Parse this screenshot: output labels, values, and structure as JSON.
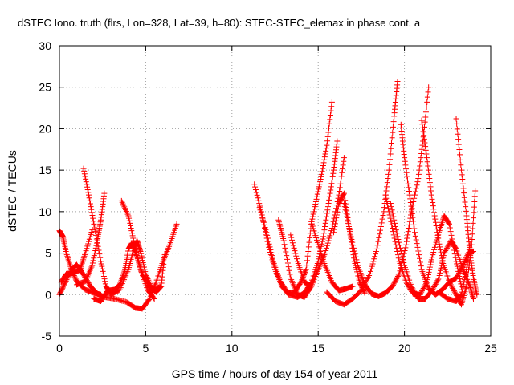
{
  "chart_data": {
    "type": "scatter",
    "title": "dSTEC Iono. truth (flrs, Lon=328, Lat=39, h=80): STEC-STEC_elemax in phase cont. a",
    "xlabel": "GPS time / hours of day 154 of year 2011",
    "ylabel": "dSTEC  / TECUs",
    "xlim": [
      0,
      25
    ],
    "ylim": [
      -5,
      30
    ],
    "xticks": [
      "0",
      "5",
      "10",
      "15",
      "20",
      "25"
    ],
    "yticks": [
      "-5",
      "0",
      "5",
      "10",
      "15",
      "20",
      "25",
      "30"
    ],
    "grid": true,
    "marker": "+",
    "color": "#ff0000",
    "arcs": [
      [
        [
          0.0,
          7.7
        ],
        [
          0.2,
          7.0
        ],
        [
          0.4,
          5.0
        ],
        [
          0.7,
          3.0
        ],
        [
          1.0,
          1.6
        ],
        [
          1.5,
          0.6
        ],
        [
          2.0,
          0.2
        ],
        [
          2.4,
          0.0
        ]
      ],
      [
        [
          0.0,
          0.0
        ],
        [
          0.3,
          1.3
        ],
        [
          0.7,
          3.0
        ],
        [
          1.0,
          3.6
        ],
        [
          1.4,
          2.4
        ],
        [
          1.8,
          1.0
        ],
        [
          2.2,
          0.1
        ],
        [
          2.6,
          -0.3
        ],
        [
          3.2,
          -0.5
        ],
        [
          3.9,
          -0.9
        ],
        [
          4.4,
          -1.6
        ],
        [
          4.8,
          -1.7
        ],
        [
          5.2,
          -0.6
        ],
        [
          5.6,
          1.5
        ],
        [
          6.0,
          4.0
        ],
        [
          6.4,
          6.0
        ],
        [
          6.8,
          8.5
        ]
      ],
      [
        [
          0.1,
          1.5
        ],
        [
          0.4,
          2.5
        ],
        [
          0.8,
          2.6
        ],
        [
          1.2,
          3.0
        ],
        [
          1.5,
          5.0
        ],
        [
          1.9,
          7.8
        ]
      ],
      [
        [
          1.4,
          15.2
        ],
        [
          1.7,
          12.0
        ],
        [
          2.0,
          8.5
        ],
        [
          2.4,
          4.0
        ],
        [
          2.7,
          1.0
        ],
        [
          3.0,
          0.0
        ],
        [
          3.5,
          0.6
        ],
        [
          4.0,
          3.0
        ],
        [
          4.3,
          5.5
        ],
        [
          4.5,
          6.5
        ],
        [
          4.7,
          5.2
        ],
        [
          5.0,
          2.5
        ],
        [
          5.4,
          0.6
        ],
        [
          5.9,
          1.0
        ],
        [
          6.1,
          4.8
        ]
      ],
      [
        [
          1.0,
          1.2
        ],
        [
          1.5,
          1.6
        ],
        [
          1.9,
          3.5
        ],
        [
          2.2,
          6.5
        ],
        [
          2.4,
          9.0
        ],
        [
          2.6,
          12.2
        ]
      ],
      [
        [
          2.0,
          -0.5
        ],
        [
          2.4,
          -0.8
        ],
        [
          2.8,
          0.5
        ],
        [
          3.2,
          0.6
        ],
        [
          3.5,
          1.2
        ],
        [
          3.8,
          3.0
        ],
        [
          4.0,
          5.5
        ],
        [
          4.2,
          6.2
        ],
        [
          4.5,
          4.5
        ],
        [
          4.8,
          2.5
        ],
        [
          5.2,
          1.0
        ],
        [
          5.6,
          0.3
        ],
        [
          5.9,
          1.0
        ]
      ],
      [
        [
          3.6,
          11.3
        ],
        [
          4.0,
          9.5
        ],
        [
          4.3,
          6.5
        ],
        [
          4.7,
          3.0
        ],
        [
          5.1,
          0.6
        ],
        [
          5.5,
          -0.5
        ]
      ],
      [
        [
          11.3,
          13.3
        ],
        [
          11.7,
          10.0
        ],
        [
          12.1,
          6.0
        ],
        [
          12.5,
          3.0
        ],
        [
          12.9,
          1.0
        ],
        [
          13.3,
          0.0
        ],
        [
          13.8,
          -0.3
        ],
        [
          14.2,
          0.2
        ],
        [
          14.6,
          1.5
        ],
        [
          15.0,
          4.0
        ],
        [
          15.3,
          7.0
        ],
        [
          15.6,
          11.0
        ],
        [
          15.9,
          15.0
        ],
        [
          16.1,
          18.5
        ]
      ],
      [
        [
          11.6,
          10.5
        ],
        [
          12.0,
          7.5
        ],
        [
          12.4,
          4.0
        ],
        [
          12.8,
          1.6
        ],
        [
          13.2,
          0.3
        ],
        [
          13.6,
          0.2
        ],
        [
          14.0,
          1.5
        ],
        [
          14.3,
          3.0
        ],
        [
          14.6,
          8.5
        ],
        [
          14.9,
          11.5
        ],
        [
          15.2,
          14.5
        ],
        [
          15.5,
          18.0
        ],
        [
          15.8,
          23.2
        ]
      ],
      [
        [
          12.7,
          9.0
        ],
        [
          13.0,
          6.5
        ],
        [
          13.4,
          2.0
        ],
        [
          13.8,
          0.0
        ],
        [
          14.2,
          -0.3
        ],
        [
          14.6,
          1.0
        ]
      ],
      [
        [
          13.4,
          7.2
        ],
        [
          13.8,
          4.0
        ],
        [
          14.2,
          1.5
        ],
        [
          14.6,
          1.0
        ],
        [
          15.0,
          3.0
        ],
        [
          15.4,
          5.0
        ],
        [
          15.8,
          8.0
        ],
        [
          16.2,
          12.0
        ],
        [
          16.5,
          16.5
        ]
      ],
      [
        [
          14.6,
          8.8
        ],
        [
          15.0,
          6.0
        ],
        [
          15.4,
          3.5
        ],
        [
          15.8,
          1.5
        ],
        [
          16.2,
          0.5
        ],
        [
          16.6,
          0.7
        ],
        [
          17.0,
          1.0
        ]
      ],
      [
        [
          15.9,
          7.5
        ],
        [
          16.2,
          11.0
        ],
        [
          16.5,
          12.2
        ],
        [
          16.8,
          8.0
        ],
        [
          17.1,
          4.0
        ],
        [
          17.4,
          1.5
        ],
        [
          17.7,
          0.2
        ]
      ],
      [
        [
          15.5,
          0.3
        ],
        [
          16.0,
          -0.8
        ],
        [
          16.5,
          -1.2
        ],
        [
          17.0,
          -0.5
        ],
        [
          17.5,
          0.5
        ],
        [
          18.0,
          2.5
        ],
        [
          18.4,
          5.5
        ],
        [
          18.8,
          10.0
        ],
        [
          19.1,
          15.0
        ],
        [
          19.4,
          21.5
        ],
        [
          19.6,
          25.7
        ]
      ],
      [
        [
          16.5,
          11.0
        ],
        [
          16.9,
          7.0
        ],
        [
          17.3,
          3.5
        ],
        [
          17.7,
          1.2
        ],
        [
          18.1,
          0.1
        ],
        [
          18.5,
          -0.2
        ],
        [
          18.9,
          0.2
        ],
        [
          19.3,
          1.0
        ],
        [
          19.7,
          2.5
        ],
        [
          20.1,
          6.0
        ],
        [
          20.4,
          10.0
        ],
        [
          20.8,
          14.0
        ],
        [
          21.1,
          19.0
        ],
        [
          21.4,
          25.0
        ]
      ],
      [
        [
          18.9,
          12.0
        ],
        [
          19.3,
          8.0
        ],
        [
          19.7,
          4.0
        ],
        [
          20.1,
          1.5
        ],
        [
          20.5,
          0.1
        ],
        [
          20.9,
          0.0
        ],
        [
          21.3,
          1.5
        ],
        [
          21.6,
          4.5
        ],
        [
          22.0,
          7.5
        ],
        [
          22.3,
          9.5
        ],
        [
          22.6,
          8.5
        ],
        [
          23.0,
          4.0
        ],
        [
          23.3,
          1.0
        ]
      ],
      [
        [
          19.8,
          20.5
        ],
        [
          20.0,
          16.5
        ],
        [
          20.3,
          12.0
        ],
        [
          20.6,
          7.5
        ],
        [
          21.0,
          3.0
        ],
        [
          21.4,
          0.7
        ],
        [
          21.8,
          0.0
        ],
        [
          22.2,
          0.6
        ],
        [
          22.6,
          1.5
        ],
        [
          23.0,
          2.0
        ],
        [
          23.4,
          3.5
        ],
        [
          23.7,
          5.0
        ],
        [
          24.0,
          5.2
        ]
      ],
      [
        [
          19.2,
          11.0
        ],
        [
          19.6,
          7.0
        ],
        [
          20.0,
          3.5
        ],
        [
          20.4,
          1.0
        ],
        [
          20.8,
          -0.5
        ],
        [
          21.2,
          -0.5
        ],
        [
          21.6,
          0.5
        ],
        [
          22.0,
          2.0
        ],
        [
          22.3,
          5.0
        ],
        [
          22.7,
          6.5
        ],
        [
          23.0,
          5.5
        ],
        [
          23.4,
          3.0
        ],
        [
          23.8,
          1.0
        ],
        [
          24.0,
          -0.5
        ]
      ],
      [
        [
          21.0,
          21.0
        ],
        [
          21.3,
          16.5
        ],
        [
          21.6,
          11.5
        ],
        [
          21.9,
          7.5
        ],
        [
          22.2,
          4.0
        ],
        [
          22.6,
          1.5
        ],
        [
          23.0,
          0.0
        ],
        [
          23.3,
          -1.2
        ],
        [
          23.6,
          1.0
        ],
        [
          23.9,
          6.0
        ],
        [
          24.1,
          12.5
        ]
      ],
      [
        [
          23.0,
          21.2
        ],
        [
          23.3,
          15.0
        ],
        [
          23.6,
          9.5
        ],
        [
          23.8,
          5.0
        ],
        [
          24.0,
          2.0
        ],
        [
          24.2,
          0.0
        ]
      ],
      [
        [
          22.0,
          0.3
        ],
        [
          22.5,
          -0.5
        ],
        [
          23.0,
          -0.8
        ],
        [
          23.3,
          0.0
        ],
        [
          23.6,
          3.0
        ],
        [
          23.8,
          6.0
        ]
      ]
    ]
  }
}
